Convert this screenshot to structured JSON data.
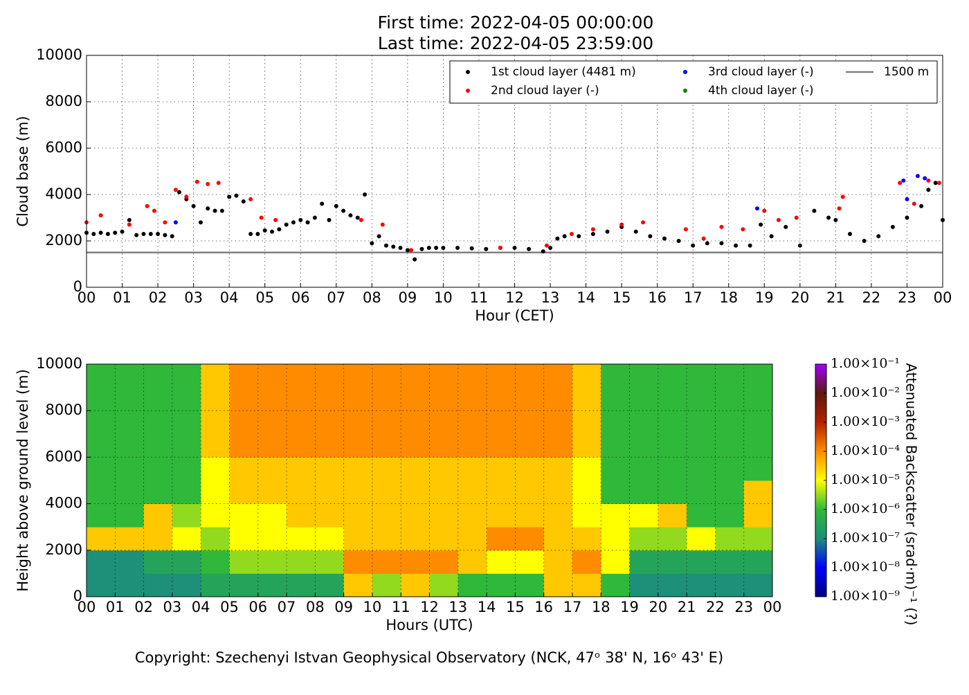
{
  "footer": "Copyright: Szechenyi Istvan Geophysical Observatory (NCK, 47ᵒ  38' N, 16ᵒ  43' E)",
  "chart_data": [
    {
      "type": "scatter",
      "title": "First time: 2022-04-05 00:00:00",
      "subtitle": "Last time: 2022-04-05 23:59:00",
      "x_label": "Hour (CET)",
      "y_label": "Cloud base (m)",
      "xlim": [
        0,
        24
      ],
      "ylim": [
        0,
        10000
      ],
      "xticks": [
        {
          "value": 0,
          "label": "00"
        },
        {
          "value": 1,
          "label": "01"
        },
        {
          "value": 2,
          "label": "02"
        },
        {
          "value": 3,
          "label": "03"
        },
        {
          "value": 4,
          "label": "04"
        },
        {
          "value": 5,
          "label": "05"
        },
        {
          "value": 6,
          "label": "06"
        },
        {
          "value": 7,
          "label": "07"
        },
        {
          "value": 8,
          "label": "08"
        },
        {
          "value": 9,
          "label": "09"
        },
        {
          "value": 10,
          "label": "10"
        },
        {
          "value": 11,
          "label": "11"
        },
        {
          "value": 12,
          "label": "12"
        },
        {
          "value": 13,
          "label": "13"
        },
        {
          "value": 14,
          "label": "14"
        },
        {
          "value": 15,
          "label": "15"
        },
        {
          "value": 16,
          "label": "16"
        },
        {
          "value": 17,
          "label": "17"
        },
        {
          "value": 18,
          "label": "18"
        },
        {
          "value": 19,
          "label": "19"
        },
        {
          "value": 20,
          "label": "20"
        },
        {
          "value": 21,
          "label": "21"
        },
        {
          "value": 22,
          "label": "22"
        },
        {
          "value": 23,
          "label": "23"
        },
        {
          "value": 24,
          "label": "00"
        }
      ],
      "yticks": [
        0,
        2000,
        4000,
        6000,
        8000,
        10000
      ],
      "grid": true,
      "legend": "upper right",
      "series": [
        {
          "name": "1st cloud layer (4481 m)",
          "color": "#000000",
          "x": [
            0,
            0.2,
            0.4,
            0.6,
            0.8,
            1.0,
            1.2,
            1.4,
            1.6,
            1.8,
            2.0,
            2.2,
            2.4,
            2.6,
            2.8,
            3.0,
            3.2,
            3.4,
            3.6,
            3.8,
            4.0,
            4.2,
            4.4,
            4.6,
            4.8,
            5.0,
            5.2,
            5.4,
            5.6,
            5.8,
            6.0,
            6.2,
            6.4,
            6.6,
            6.8,
            7.0,
            7.2,
            7.4,
            7.6,
            7.8,
            8.0,
            8.2,
            8.4,
            8.6,
            8.8,
            9.0,
            9.2,
            9.4,
            9.6,
            9.8,
            10.0,
            10.4,
            10.8,
            11.2,
            11.6,
            12.0,
            12.4,
            12.8,
            13.0,
            13.2,
            13.4,
            13.8,
            14.2,
            14.6,
            15.0,
            15.4,
            15.8,
            16.2,
            16.6,
            17.0,
            17.4,
            17.8,
            18.2,
            18.6,
            18.9,
            19.2,
            19.6,
            20.0,
            20.4,
            20.8,
            21.0,
            21.4,
            21.8,
            22.2,
            22.6,
            23.0,
            23.4,
            23.6,
            23.8,
            24.0
          ],
          "values": [
            2350,
            2300,
            2350,
            2300,
            2350,
            2400,
            2900,
            2250,
            2300,
            2300,
            2300,
            2250,
            2200,
            4100,
            3800,
            3500,
            2800,
            3400,
            3300,
            3300,
            3900,
            3950,
            3700,
            2300,
            2300,
            2450,
            2400,
            2500,
            2700,
            2800,
            2900,
            2800,
            3000,
            3600,
            2900,
            3500,
            3300,
            3100,
            3000,
            4000,
            1900,
            2200,
            1800,
            1750,
            1700,
            1600,
            1200,
            1650,
            1700,
            1700,
            1700,
            1700,
            1680,
            1650,
            1700,
            1700,
            1650,
            1550,
            1700,
            2100,
            2200,
            2200,
            2300,
            2400,
            2600,
            2400,
            2200,
            2100,
            2000,
            1800,
            1900,
            1900,
            1800,
            1800,
            2700,
            2200,
            2600,
            1800,
            3300,
            3000,
            2900,
            2300,
            2000,
            2200,
            2600,
            3000,
            3500,
            4200,
            4500,
            2900
          ]
        },
        {
          "name": "2nd cloud layer (-)",
          "color": "#ff0000",
          "x": [
            0,
            0.4,
            1.2,
            1.7,
            1.9,
            2.2,
            2.5,
            2.8,
            3.1,
            3.4,
            3.7,
            4.6,
            4.9,
            5.3,
            7.7,
            8.3,
            9.1,
            11.6,
            12.9,
            13.6,
            14.2,
            15.0,
            15.6,
            16.8,
            17.3,
            17.8,
            18.4,
            19.0,
            19.4,
            19.9,
            21.1,
            21.2,
            22.8,
            23.2,
            23.6,
            23.9
          ],
          "values": [
            2800,
            3100,
            2700,
            3500,
            3300,
            2800,
            4200,
            3900,
            4550,
            4450,
            4500,
            3800,
            3000,
            2900,
            2900,
            2700,
            1600,
            1700,
            1800,
            2300,
            2500,
            2700,
            2800,
            2500,
            2100,
            2600,
            2500,
            3300,
            2900,
            3000,
            3400,
            3900,
            4500,
            3600,
            4600,
            4500
          ]
        },
        {
          "name": "3rd cloud layer (-)",
          "color": "#0000ff",
          "x": [
            2.5,
            18.8,
            22.9,
            23.0,
            23.3,
            23.5
          ],
          "values": [
            2800,
            3400,
            4600,
            3800,
            4800,
            4700
          ]
        },
        {
          "name": "4th cloud layer (-)",
          "color": "#008000",
          "x": [],
          "values": []
        }
      ],
      "hlines": [
        {
          "name": "1500 m",
          "value": 1500,
          "color": "#808080"
        }
      ]
    },
    {
      "type": "heatmap",
      "x_label": "Hours (UTC)",
      "y_label": "Height above ground level (m)",
      "colorbar_label": "Attenuated Backscatter (srad·m)⁻¹ (?)",
      "xlim": [
        0,
        24
      ],
      "ylim": [
        0,
        10000
      ],
      "xticks": [
        {
          "value": 0,
          "label": "00"
        },
        {
          "value": 1,
          "label": "01"
        },
        {
          "value": 2,
          "label": "02"
        },
        {
          "value": 3,
          "label": "03"
        },
        {
          "value": 4,
          "label": "04"
        },
        {
          "value": 5,
          "label": "05"
        },
        {
          "value": 6,
          "label": "06"
        },
        {
          "value": 7,
          "label": "07"
        },
        {
          "value": 8,
          "label": "08"
        },
        {
          "value": 9,
          "label": "09"
        },
        {
          "value": 10,
          "label": "10"
        },
        {
          "value": 11,
          "label": "11"
        },
        {
          "value": 12,
          "label": "12"
        },
        {
          "value": 13,
          "label": "13"
        },
        {
          "value": 14,
          "label": "14"
        },
        {
          "value": 15,
          "label": "15"
        },
        {
          "value": 16,
          "label": "16"
        },
        {
          "value": 17,
          "label": "17"
        },
        {
          "value": 18,
          "label": "18"
        },
        {
          "value": 19,
          "label": "19"
        },
        {
          "value": 20,
          "label": "20"
        },
        {
          "value": 21,
          "label": "21"
        },
        {
          "value": 22,
          "label": "22"
        },
        {
          "value": 23,
          "label": "23"
        },
        {
          "value": 24,
          "label": "00"
        }
      ],
      "yticks": [
        0,
        2000,
        4000,
        6000,
        8000,
        10000
      ],
      "grid": true,
      "xbins": [
        0,
        1,
        2,
        3,
        4,
        5,
        6,
        7,
        8,
        9,
        10,
        11,
        12,
        13,
        14,
        15,
        16,
        17,
        18,
        19,
        20,
        21,
        22,
        23,
        24
      ],
      "ybins": [
        0,
        1000,
        2000,
        3000,
        4000,
        5000,
        6000,
        7000,
        8000,
        9000,
        10000
      ],
      "z": [
        [
          1e-07,
          1e-07,
          1e-07,
          1e-07,
          3e-07,
          3e-07,
          3e-07,
          3e-07,
          3e-07,
          3e-05,
          3e-06,
          3e-05,
          3e-06,
          1e-06,
          1e-06,
          1e-06,
          3e-05,
          3e-05,
          1e-06,
          1e-07,
          1e-07,
          1e-07,
          1e-07,
          1e-07
        ],
        [
          1e-07,
          1e-07,
          3e-07,
          3e-07,
          1e-06,
          3e-06,
          3e-06,
          3e-06,
          3e-06,
          0.0001,
          0.0001,
          0.0001,
          0.0001,
          3e-05,
          1e-05,
          1e-05,
          3e-05,
          0.0001,
          1e-05,
          3e-07,
          3e-07,
          3e-07,
          3e-07,
          3e-07
        ],
        [
          3e-05,
          3e-05,
          3e-05,
          1e-05,
          3e-06,
          1e-05,
          1e-05,
          1e-05,
          1e-05,
          3e-05,
          3e-05,
          3e-05,
          3e-05,
          3e-05,
          0.0001,
          0.0001,
          3e-05,
          3e-05,
          1e-05,
          3e-06,
          3e-06,
          1e-05,
          3e-06,
          3e-06
        ],
        [
          1e-06,
          1e-06,
          3e-05,
          3e-06,
          1e-05,
          1e-05,
          1e-05,
          3e-05,
          3e-05,
          3e-05,
          3e-05,
          3e-05,
          3e-05,
          3e-05,
          3e-05,
          3e-05,
          3e-05,
          1e-05,
          1e-05,
          1e-05,
          3e-05,
          1e-06,
          1e-06,
          3e-05
        ],
        [
          1e-06,
          1e-06,
          1e-06,
          1e-06,
          1e-05,
          3e-05,
          3e-05,
          3e-05,
          3e-05,
          3e-05,
          3e-05,
          3e-05,
          3e-05,
          3e-05,
          3e-05,
          3e-05,
          3e-05,
          1e-05,
          1e-06,
          1e-06,
          1e-06,
          1e-06,
          1e-06,
          3e-05
        ],
        [
          1e-06,
          1e-06,
          1e-06,
          1e-06,
          1e-05,
          3e-05,
          3e-05,
          3e-05,
          3e-05,
          3e-05,
          3e-05,
          3e-05,
          3e-05,
          3e-05,
          3e-05,
          3e-05,
          3e-05,
          1e-05,
          1e-06,
          1e-06,
          1e-06,
          1e-06,
          1e-06,
          1e-06
        ],
        [
          1e-06,
          1e-06,
          1e-06,
          1e-06,
          3e-05,
          0.0001,
          0.0001,
          0.0001,
          0.0001,
          0.0001,
          0.0001,
          0.0001,
          0.0001,
          0.0001,
          0.0001,
          0.0001,
          0.0001,
          3e-05,
          1e-06,
          1e-06,
          1e-06,
          1e-06,
          1e-06,
          1e-06
        ],
        [
          1e-06,
          1e-06,
          1e-06,
          1e-06,
          3e-05,
          0.0001,
          0.0001,
          0.0001,
          0.0001,
          0.0001,
          0.0001,
          0.0001,
          0.0001,
          0.0001,
          0.0001,
          0.0001,
          0.0001,
          3e-05,
          1e-06,
          1e-06,
          1e-06,
          1e-06,
          1e-06,
          1e-06
        ],
        [
          1e-06,
          1e-06,
          1e-06,
          1e-06,
          3e-05,
          0.0001,
          0.0001,
          0.0001,
          0.0001,
          0.0001,
          0.0001,
          0.0001,
          0.0001,
          0.0001,
          0.0001,
          0.0001,
          0.0001,
          3e-05,
          1e-06,
          1e-06,
          1e-06,
          1e-06,
          1e-06,
          1e-06
        ],
        [
          1e-06,
          1e-06,
          1e-06,
          1e-06,
          3e-05,
          0.0001,
          0.0001,
          0.0001,
          0.0001,
          0.0001,
          0.0001,
          0.0001,
          0.0001,
          0.0001,
          0.0001,
          0.0001,
          0.0001,
          3e-05,
          1e-06,
          1e-06,
          1e-06,
          1e-06,
          1e-06,
          1e-06
        ]
      ],
      "log_color": true,
      "clim": [
        1e-09,
        0.1
      ],
      "cticks": [
        {
          "value": 1e-09,
          "label": "1.00×10⁻⁹"
        },
        {
          "value": 1e-08,
          "label": "1.00×10⁻⁸"
        },
        {
          "value": 1e-07,
          "label": "1.00×10⁻⁷"
        },
        {
          "value": 1e-06,
          "label": "1.00×10⁻⁶"
        },
        {
          "value": 1e-05,
          "label": "1.00×10⁻⁵"
        },
        {
          "value": 0.0001,
          "label": "1.00×10⁻⁴"
        },
        {
          "value": 0.001,
          "label": "1.00×10⁻³"
        },
        {
          "value": 0.01,
          "label": "1.00×10⁻²"
        },
        {
          "value": 0.1,
          "label": "1.00×10⁻¹"
        }
      ],
      "colormap": [
        "#00007f",
        "#0000ff",
        "#1e8f78",
        "#2fb83a",
        "#ffff00",
        "#ff8c00",
        "#b42000",
        "#5a1a10",
        "#a000ff"
      ]
    }
  ]
}
